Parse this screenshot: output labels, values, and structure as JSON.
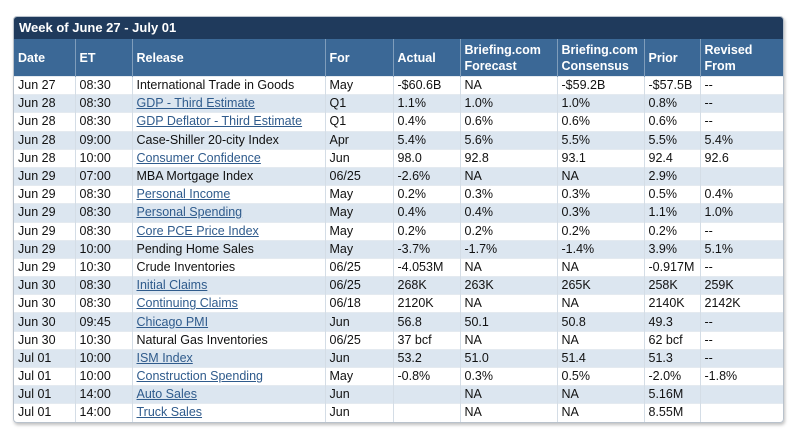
{
  "header": {
    "title": "Week of June 27 - July 01"
  },
  "table": {
    "columns": [
      [
        "Date"
      ],
      [
        "ET"
      ],
      [
        "Release"
      ],
      [
        "For"
      ],
      [
        "Actual"
      ],
      [
        "Briefing.com",
        "Forecast"
      ],
      [
        "Briefing.com",
        "Consensus"
      ],
      [
        "Prior"
      ],
      [
        "Revised",
        "From"
      ]
    ],
    "rows": [
      {
        "link": false,
        "cells": [
          "Jun 27",
          "08:30",
          "International Trade in Goods",
          "May",
          "-$60.6B",
          "NA",
          "-$59.2B",
          "-$57.5B",
          "--"
        ]
      },
      {
        "link": true,
        "cells": [
          "Jun 28",
          "08:30",
          "GDP - Third Estimate",
          "Q1",
          "1.1%",
          "1.0%",
          "1.0%",
          "0.8%",
          "--"
        ]
      },
      {
        "link": true,
        "cells": [
          "Jun 28",
          "08:30",
          "GDP Deflator - Third Estimate",
          "Q1",
          "0.4%",
          "0.6%",
          "0.6%",
          "0.6%",
          "--"
        ]
      },
      {
        "link": false,
        "cells": [
          "Jun 28",
          "09:00",
          "Case-Shiller 20-city Index",
          "Apr",
          "5.4%",
          "5.6%",
          "5.5%",
          "5.5%",
          "5.4%"
        ]
      },
      {
        "link": true,
        "cells": [
          "Jun 28",
          "10:00",
          "Consumer Confidence",
          "Jun",
          "98.0",
          "92.8",
          "93.1",
          "92.4",
          "92.6"
        ]
      },
      {
        "link": false,
        "cells": [
          "Jun 29",
          "07:00",
          "MBA Mortgage Index",
          "06/25",
          "-2.6%",
          "NA",
          "NA",
          "2.9%",
          null
        ]
      },
      {
        "link": true,
        "cells": [
          "Jun 29",
          "08:30",
          "Personal Income",
          "May",
          "0.2%",
          "0.3%",
          "0.3%",
          "0.5%",
          "0.4%"
        ]
      },
      {
        "link": true,
        "cells": [
          "Jun 29",
          "08:30",
          "Personal Spending",
          "May",
          "0.4%",
          "0.4%",
          "0.3%",
          "1.1%",
          "1.0%"
        ]
      },
      {
        "link": true,
        "cells": [
          "Jun 29",
          "08:30",
          "Core PCE Price Index",
          "May",
          "0.2%",
          "0.2%",
          "0.2%",
          "0.2%",
          "--"
        ]
      },
      {
        "link": false,
        "cells": [
          "Jun 29",
          "10:00",
          "Pending Home Sales",
          "May",
          "-3.7%",
          "-1.7%",
          "-1.4%",
          "3.9%",
          "5.1%"
        ]
      },
      {
        "link": false,
        "cells": [
          "Jun 29",
          "10:30",
          "Crude Inventories",
          "06/25",
          "-4.053M",
          "NA",
          "NA",
          "-0.917M",
          "--"
        ]
      },
      {
        "link": true,
        "cells": [
          "Jun 30",
          "08:30",
          "Initial Claims",
          "06/25",
          "268K",
          "263K",
          "265K",
          "258K",
          "259K"
        ]
      },
      {
        "link": true,
        "cells": [
          "Jun 30",
          "08:30",
          "Continuing Claims",
          "06/18",
          "2120K",
          "NA",
          "NA",
          "2140K",
          "2142K"
        ]
      },
      {
        "link": true,
        "cells": [
          "Jun 30",
          "09:45",
          "Chicago PMI",
          "Jun",
          "56.8",
          "50.1",
          "50.8",
          "49.3",
          "--"
        ]
      },
      {
        "link": false,
        "cells": [
          "Jun 30",
          "10:30",
          "Natural Gas Inventories",
          "06/25",
          "37 bcf",
          "NA",
          "NA",
          "62 bcf",
          "--"
        ]
      },
      {
        "link": true,
        "cells": [
          "Jul 01",
          "10:00",
          "ISM Index",
          "Jun",
          "53.2",
          "51.0",
          "51.4",
          "51.3",
          "--"
        ]
      },
      {
        "link": true,
        "cells": [
          "Jul 01",
          "10:00",
          "Construction Spending",
          "May",
          "-0.8%",
          "0.3%",
          "0.5%",
          "-2.0%",
          "-1.8%"
        ]
      },
      {
        "link": true,
        "cells": [
          "Jul 01",
          "14:00",
          "Auto Sales",
          "Jun",
          null,
          "NA",
          "NA",
          "5.16M",
          null
        ]
      },
      {
        "link": true,
        "cells": [
          "Jul 01",
          "14:00",
          "Truck Sales",
          "Jun",
          null,
          "NA",
          "NA",
          "8.55M",
          null
        ]
      }
    ]
  }
}
